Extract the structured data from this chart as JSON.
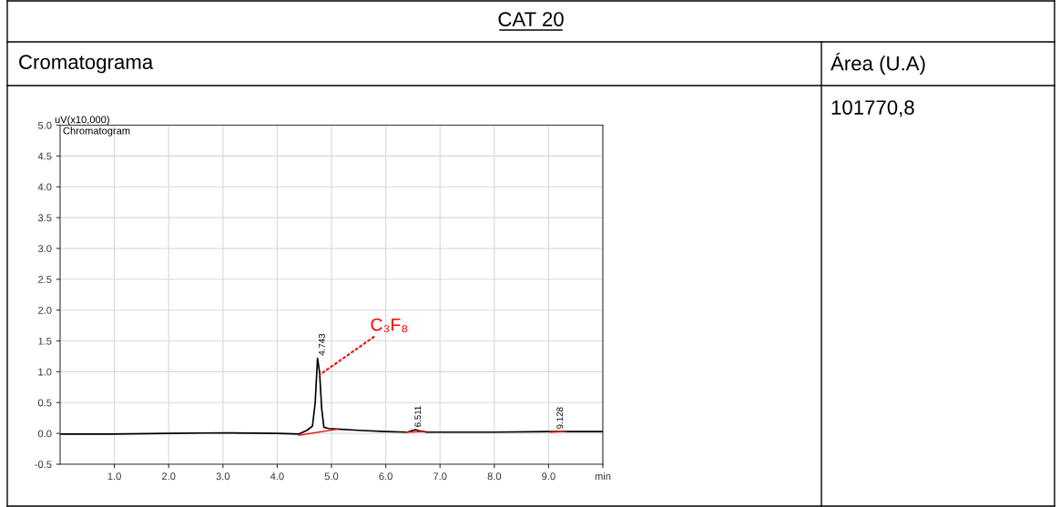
{
  "chart_data": {
    "type": "line",
    "title": "CAT 20",
    "ylabel": "uV(x10,000)",
    "x": [
      0,
      1,
      2,
      3,
      4,
      4.4,
      4.55,
      4.65,
      4.7,
      4.743,
      4.78,
      4.82,
      4.86,
      4.95,
      5.1,
      5.5,
      6.0,
      6.4,
      6.5,
      6.55,
      6.62,
      6.75,
      7,
      8,
      9,
      9.13,
      9.3,
      10
    ],
    "series": [
      {
        "color": "#000000",
        "values": [
          -0.01,
          -0.01,
          0.0,
          0.01,
          0.0,
          -0.01,
          0.05,
          0.12,
          0.5,
          1.22,
          1.0,
          0.4,
          0.1,
          0.08,
          0.07,
          0.05,
          0.03,
          0.02,
          0.05,
          0.06,
          0.04,
          0.02,
          0.02,
          0.02,
          0.03,
          0.03,
          0.03,
          0.03
        ]
      },
      {
        "color": "#ff0000",
        "x": [
          4.4,
          5.12,
          5.2,
          6.38,
          6.73,
          6.8,
          9.03,
          9.3
        ],
        "values": [
          -0.03,
          0.07,
          null,
          0.02,
          0.03,
          null,
          0.02,
          0.03
        ]
      }
    ],
    "xlim": [
      0,
      10
    ],
    "xticks": [
      {
        "value": 1,
        "label": "1.0"
      },
      {
        "value": 2,
        "label": "2.0"
      },
      {
        "value": 3,
        "label": "3.0"
      },
      {
        "value": 4,
        "label": "4.0"
      },
      {
        "value": 5,
        "label": "5.0"
      },
      {
        "value": 6,
        "label": "6.0"
      },
      {
        "value": 7,
        "label": "7.0"
      },
      {
        "value": 8,
        "label": "8.0"
      },
      {
        "value": 9,
        "label": "9.0"
      },
      {
        "value": 10,
        "label": "min"
      }
    ],
    "ylim": [
      -0.5,
      5.0
    ],
    "yticks": [
      -0.5,
      {
        "value": 0,
        "label": "0.0"
      },
      0.5,
      {
        "value": 1,
        "label": "1.0"
      },
      1.5,
      {
        "value": 2,
        "label": "2.0"
      },
      2.5,
      {
        "value": 3,
        "label": "3.0"
      },
      3.5,
      {
        "value": 4,
        "label": "4.0"
      },
      4.5,
      {
        "value": 5,
        "label": "5.0"
      }
    ],
    "grid": true,
    "legend": false,
    "annotations": [
      "Chromatogram",
      "Cromatograma",
      "Área (U.A)",
      "101770,8",
      {
        "text": "4.743",
        "x": 4.743,
        "y": 1.22
      },
      {
        "text": "6.511",
        "x": 6.511,
        "y": 0.06
      },
      {
        "text": "9.128",
        "x": 9.128,
        "y": 0.03
      },
      {
        "text": "C₃F₈",
        "x": 4.78,
        "y": 0.95
      }
    ]
  }
}
